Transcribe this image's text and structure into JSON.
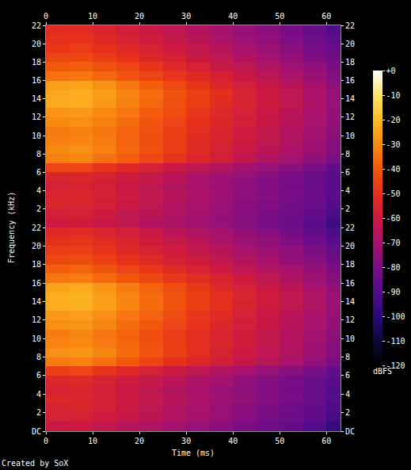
{
  "chart_data": [
    {
      "type": "heatmap",
      "xlim": [
        0,
        63
      ],
      "xticks": [
        0,
        10,
        20,
        30,
        40,
        50,
        60
      ],
      "ylim": [
        0,
        22
      ],
      "yticks": [
        2,
        4,
        6,
        8,
        10,
        12,
        14,
        16,
        18,
        20,
        22
      ],
      "x": [
        2.5,
        7.5,
        12.5,
        17.5,
        22.5,
        27.5,
        32.5,
        37.5,
        42.5,
        47.5,
        52.5,
        57.5,
        62.5
      ],
      "y": [
        0.5,
        1.5,
        2.5,
        3.5,
        4.5,
        5.5,
        6.5,
        7.5,
        8.5,
        9.5,
        10.5,
        11.5,
        12.5,
        13.5,
        14.5,
        15.5,
        16.5,
        17.5,
        18.5,
        19.5,
        20.5,
        21.5
      ],
      "z": [
        [
          -60,
          -59,
          -62,
          -64,
          -67,
          -69,
          -72,
          -75,
          -78,
          -81,
          -84,
          -88,
          -95
        ],
        [
          -58,
          -57,
          -60,
          -63,
          -65,
          -68,
          -71,
          -74,
          -77,
          -80,
          -83,
          -86,
          -92
        ],
        [
          -55,
          -55,
          -58,
          -61,
          -64,
          -67,
          -70,
          -73,
          -77,
          -79,
          -82,
          -85,
          -90
        ],
        [
          -55,
          -54,
          -57,
          -60,
          -63,
          -66,
          -69,
          -72,
          -76,
          -78,
          -81,
          -84,
          -88
        ],
        [
          -57,
          -56,
          -58,
          -61,
          -64,
          -67,
          -70,
          -73,
          -76,
          -79,
          -82,
          -85,
          -89
        ],
        [
          -55,
          -54,
          -56,
          -59,
          -62,
          -65,
          -69,
          -72,
          -75,
          -78,
          -81,
          -84,
          -88
        ],
        [
          -45,
          -45,
          -49,
          -53,
          -57,
          -61,
          -64,
          -67,
          -71,
          -74,
          -77,
          -81,
          -86
        ],
        [
          -32,
          -31,
          -35,
          -39,
          -44,
          -49,
          -54,
          -58,
          -63,
          -67,
          -71,
          -75,
          -80
        ],
        [
          -30,
          -29,
          -32,
          -37,
          -42,
          -47,
          -52,
          -57,
          -61,
          -65,
          -69,
          -73,
          -78
        ],
        [
          -32,
          -31,
          -33,
          -38,
          -43,
          -47,
          -52,
          -56,
          -60,
          -64,
          -68,
          -72,
          -77
        ],
        [
          -33,
          -32,
          -34,
          -38,
          -42,
          -46,
          -51,
          -55,
          -59,
          -63,
          -67,
          -71,
          -76
        ],
        [
          -30,
          -29,
          -32,
          -36,
          -41,
          -45,
          -50,
          -54,
          -58,
          -62,
          -66,
          -70,
          -75
        ],
        [
          -28,
          -27,
          -30,
          -34,
          -39,
          -43,
          -48,
          -53,
          -57,
          -61,
          -65,
          -70,
          -75
        ],
        [
          -24,
          -23,
          -27,
          -32,
          -37,
          -42,
          -47,
          -52,
          -56,
          -60,
          -64,
          -69,
          -74
        ],
        [
          -24,
          -23,
          -26,
          -31,
          -36,
          -41,
          -46,
          -51,
          -56,
          -60,
          -64,
          -69,
          -74
        ],
        [
          -26,
          -25,
          -29,
          -34,
          -39,
          -44,
          -49,
          -54,
          -58,
          -62,
          -66,
          -71,
          -76
        ],
        [
          -35,
          -34,
          -37,
          -41,
          -45,
          -49,
          -53,
          -57,
          -61,
          -65,
          -69,
          -73,
          -78
        ],
        [
          -40,
          -39,
          -42,
          -45,
          -49,
          -53,
          -57,
          -61,
          -64,
          -68,
          -72,
          -76,
          -80
        ],
        [
          -45,
          -44,
          -47,
          -50,
          -54,
          -57,
          -61,
          -64,
          -68,
          -71,
          -75,
          -79,
          -83
        ],
        [
          -48,
          -47,
          -50,
          -53,
          -56,
          -60,
          -63,
          -66,
          -70,
          -73,
          -77,
          -81,
          -85
        ],
        [
          -50,
          -50,
          -53,
          -56,
          -59,
          -62,
          -65,
          -69,
          -72,
          -75,
          -79,
          -83,
          -87
        ],
        [
          -52,
          -52,
          -55,
          -58,
          -61,
          -64,
          -67,
          -71,
          -74,
          -77,
          -81,
          -85,
          -90
        ]
      ],
      "colorbar": {
        "range": [
          -120,
          0
        ],
        "label": "dBFS",
        "ticks": [
          {
            "value": 0,
            "label": "+0"
          },
          -10,
          -20,
          -30,
          -40,
          -50,
          -60,
          -70,
          -80,
          -90,
          -100,
          -110,
          -120
        ]
      }
    },
    {
      "type": "heatmap",
      "x_label": "Time (ms)",
      "y_label": "Frequency (kHz)",
      "annotation": "Created by SoX",
      "xlim": [
        0,
        63
      ],
      "xticks": [
        0,
        10,
        20,
        30,
        40,
        50,
        60
      ],
      "ylim": [
        0,
        22
      ],
      "yticks": [
        {
          "value": 0,
          "label": "DC"
        },
        2,
        4,
        6,
        8,
        10,
        12,
        14,
        16,
        18,
        20,
        22
      ],
      "x": [
        2.5,
        7.5,
        12.5,
        17.5,
        22.5,
        27.5,
        32.5,
        37.5,
        42.5,
        47.5,
        52.5,
        57.5,
        62.5
      ],
      "y": [
        0.5,
        1.5,
        2.5,
        3.5,
        4.5,
        5.5,
        6.5,
        7.5,
        8.5,
        9.5,
        10.5,
        11.5,
        12.5,
        13.5,
        14.5,
        15.5,
        16.5,
        17.5,
        18.5,
        19.5,
        20.5,
        21.5
      ],
      "z": [
        [
          -61,
          -60,
          -63,
          -66,
          -68,
          -71,
          -74,
          -77,
          -80,
          -83,
          -86,
          -90,
          -97
        ],
        [
          -57,
          -57,
          -60,
          -62,
          -65,
          -68,
          -71,
          -74,
          -78,
          -81,
          -84,
          -87,
          -93
        ],
        [
          -56,
          -55,
          -58,
          -61,
          -64,
          -67,
          -70,
          -74,
          -77,
          -80,
          -83,
          -86,
          -91
        ],
        [
          -54,
          -54,
          -57,
          -60,
          -63,
          -66,
          -69,
          -72,
          -75,
          -78,
          -81,
          -85,
          -89
        ],
        [
          -56,
          -55,
          -58,
          -61,
          -64,
          -67,
          -70,
          -73,
          -76,
          -79,
          -82,
          -85,
          -90
        ],
        [
          -54,
          -53,
          -56,
          -59,
          -62,
          -65,
          -68,
          -71,
          -75,
          -78,
          -81,
          -84,
          -88
        ],
        [
          -46,
          -45,
          -49,
          -53,
          -57,
          -60,
          -64,
          -67,
          -70,
          -74,
          -77,
          -81,
          -86
        ],
        [
          -33,
          -32,
          -35,
          -40,
          -45,
          -50,
          -54,
          -58,
          -62,
          -66,
          -70,
          -75,
          -80
        ],
        [
          -29,
          -28,
          -31,
          -36,
          -41,
          -46,
          -51,
          -56,
          -60,
          -64,
          -68,
          -73,
          -78
        ],
        [
          -31,
          -30,
          -33,
          -37,
          -42,
          -47,
          -51,
          -55,
          -59,
          -63,
          -67,
          -72,
          -77
        ],
        [
          -33,
          -31,
          -34,
          -38,
          -43,
          -47,
          -51,
          -55,
          -59,
          -63,
          -67,
          -71,
          -76
        ],
        [
          -29,
          -28,
          -31,
          -36,
          -40,
          -45,
          -49,
          -54,
          -58,
          -62,
          -66,
          -70,
          -75
        ],
        [
          -27,
          -26,
          -29,
          -34,
          -38,
          -43,
          -48,
          -52,
          -57,
          -61,
          -65,
          -69,
          -74
        ],
        [
          -23,
          -22,
          -26,
          -31,
          -36,
          -41,
          -46,
          -51,
          -56,
          -60,
          -64,
          -68,
          -73
        ],
        [
          -23,
          -22,
          -26,
          -31,
          -36,
          -41,
          -46,
          -51,
          -55,
          -59,
          -63,
          -68,
          -73
        ],
        [
          -25,
          -24,
          -28,
          -33,
          -38,
          -43,
          -48,
          -53,
          -57,
          -61,
          -65,
          -70,
          -75
        ],
        [
          -34,
          -33,
          -36,
          -40,
          -44,
          -48,
          -52,
          -56,
          -60,
          -64,
          -68,
          -72,
          -77
        ],
        [
          -39,
          -38,
          -41,
          -45,
          -48,
          -52,
          -56,
          -60,
          -64,
          -67,
          -71,
          -75,
          -80
        ],
        [
          -44,
          -43,
          -46,
          -50,
          -53,
          -57,
          -60,
          -64,
          -67,
          -71,
          -75,
          -78,
          -83
        ],
        [
          -47,
          -46,
          -49,
          -53,
          -56,
          -59,
          -63,
          -66,
          -70,
          -73,
          -76,
          -80,
          -85
        ],
        [
          -50,
          -49,
          -52,
          -55,
          -59,
          -62,
          -65,
          -69,
          -72,
          -75,
          -79,
          -83,
          -88
        ],
        [
          -53,
          -52,
          -55,
          -58,
          -61,
          -65,
          -68,
          -71,
          -75,
          -78,
          -82,
          -86,
          -92
        ]
      ]
    }
  ]
}
